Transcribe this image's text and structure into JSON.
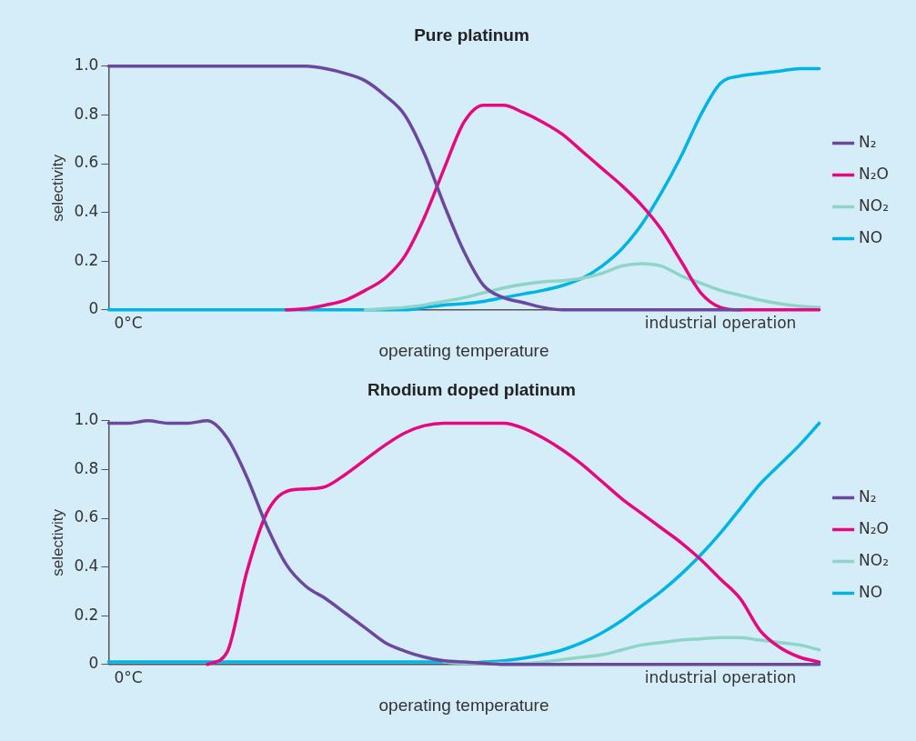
{
  "chart_data": [
    {
      "type": "line",
      "title": "Pure platinum",
      "xlabel": "operating temperature",
      "ylabel": "selectivity",
      "categories": [
        null,
        "0°C",
        null,
        null,
        null,
        null,
        null,
        null,
        null,
        null,
        null,
        null,
        null,
        null,
        null,
        null,
        null,
        null,
        null,
        null,
        null,
        null,
        null,
        null,
        null,
        null,
        null,
        null,
        null,
        null,
        null,
        "industrial operation",
        null,
        null,
        null,
        null,
        null
      ],
      "series": [
        {
          "name": "N₂",
          "color": "#6b479e",
          "values": [
            1,
            1,
            1,
            1,
            1,
            1,
            1,
            1,
            1,
            1,
            1,
            0.99,
            0.97,
            0.94,
            0.88,
            0.8,
            0.64,
            0.43,
            0.24,
            0.1,
            0.05,
            0.03,
            0.01,
            0,
            0,
            0,
            0,
            0,
            0,
            0,
            0,
            0,
            0,
            null,
            null,
            null,
            null
          ]
        },
        {
          "name": "N₂O",
          "color": "#e5087e",
          "values": [
            null,
            null,
            null,
            null,
            null,
            null,
            null,
            null,
            null,
            0,
            0.005,
            0.02,
            0.04,
            0.08,
            0.13,
            0.22,
            0.38,
            0.58,
            0.77,
            0.84,
            0.84,
            0.81,
            0.77,
            0.72,
            0.65,
            0.58,
            0.51,
            0.43,
            0.33,
            0.2,
            0.07,
            0.01,
            0,
            0,
            0,
            0,
            0
          ]
        },
        {
          "name": "NO₂",
          "color": "#8fd4c8",
          "values": [
            null,
            null,
            null,
            null,
            null,
            null,
            null,
            null,
            null,
            null,
            null,
            null,
            null,
            0,
            0.005,
            0.01,
            0.02,
            0.035,
            0.05,
            0.07,
            0.09,
            0.105,
            0.115,
            0.12,
            0.13,
            0.15,
            0.18,
            0.19,
            0.18,
            0.14,
            0.11,
            0.08,
            0.06,
            0.04,
            0.025,
            0.015,
            0.01
          ]
        },
        {
          "name": "NO",
          "color": "#00b4e6",
          "values": [
            0,
            0,
            0,
            0,
            0,
            0,
            0,
            0,
            0,
            0,
            0,
            0,
            0,
            0,
            0,
            0,
            0.01,
            0.02,
            0.025,
            0.035,
            0.05,
            0.065,
            0.08,
            0.1,
            0.13,
            0.18,
            0.25,
            0.35,
            0.48,
            0.63,
            0.8,
            0.93,
            0.96,
            0.97,
            0.98,
            0.99,
            0.99
          ]
        }
      ],
      "ylim": [
        0,
        1
      ],
      "yticks": [
        0,
        0.2,
        0.4,
        0.6,
        0.8,
        {
          "value": 1,
          "label": "1.0"
        }
      ],
      "legend": "right",
      "grid": false,
      "marker": "none",
      "line_style": "solid"
    },
    {
      "type": "line",
      "title": "Rhodium doped platinum",
      "xlabel": "operating temperature",
      "ylabel": "selectivity",
      "categories": [
        null,
        "0°C",
        null,
        null,
        null,
        null,
        null,
        null,
        null,
        null,
        null,
        null,
        null,
        null,
        null,
        null,
        null,
        null,
        null,
        null,
        null,
        null,
        null,
        null,
        null,
        null,
        null,
        null,
        null,
        null,
        null,
        "industrial operation",
        null,
        null,
        null,
        null,
        null
      ],
      "series": [
        {
          "name": "N₂",
          "color": "#6b479e",
          "values": [
            0.99,
            0.99,
            1,
            0.99,
            0.99,
            1,
            0.93,
            0.77,
            0.57,
            0.41,
            0.32,
            0.27,
            0.21,
            0.15,
            0.09,
            0.055,
            0.03,
            0.015,
            0.01,
            0.005,
            0,
            0,
            0,
            0,
            0,
            0,
            0,
            0,
            0,
            0,
            0,
            0,
            0,
            0,
            0,
            0,
            0
          ]
        },
        {
          "name": "N₂O",
          "color": "#e5087e",
          "values": [
            null,
            null,
            null,
            null,
            null,
            0,
            0.05,
            0.38,
            0.62,
            0.71,
            0.72,
            0.73,
            0.78,
            0.84,
            0.9,
            0.95,
            0.98,
            0.99,
            0.99,
            0.99,
            0.99,
            0.97,
            0.93,
            0.88,
            0.82,
            0.75,
            0.68,
            0.62,
            0.56,
            0.5,
            0.43,
            0.35,
            0.27,
            0.14,
            0.07,
            0.03,
            0.01
          ]
        },
        {
          "name": "NO₂",
          "color": "#8fd4c8",
          "values": [
            null,
            null,
            null,
            null,
            null,
            null,
            null,
            null,
            null,
            null,
            null,
            null,
            null,
            null,
            null,
            null,
            null,
            0.01,
            0.005,
            0.005,
            0.005,
            0.005,
            0.01,
            0.02,
            0.03,
            0.04,
            0.06,
            0.08,
            0.09,
            0.1,
            0.105,
            0.11,
            0.11,
            0.1,
            0.09,
            0.08,
            0.06
          ]
        },
        {
          "name": "NO",
          "color": "#00b4e6",
          "values": [
            0.01,
            0.01,
            0.01,
            0.01,
            0.01,
            0.01,
            0.01,
            0.01,
            0.01,
            0.01,
            0.01,
            0.01,
            0.01,
            0.01,
            0.01,
            0.01,
            0.01,
            0.01,
            0.005,
            0.01,
            0.015,
            0.025,
            0.04,
            0.06,
            0.09,
            0.13,
            0.18,
            0.24,
            0.3,
            0.37,
            0.45,
            0.54,
            0.64,
            0.74,
            0.82,
            0.9,
            0.99
          ]
        }
      ],
      "ylim": [
        0,
        1
      ],
      "yticks": [
        0,
        0.2,
        0.4,
        0.6,
        0.8,
        {
          "value": 1,
          "label": "1.0"
        }
      ],
      "legend": "right",
      "grid": false,
      "marker": "none",
      "line_style": "solid"
    }
  ]
}
